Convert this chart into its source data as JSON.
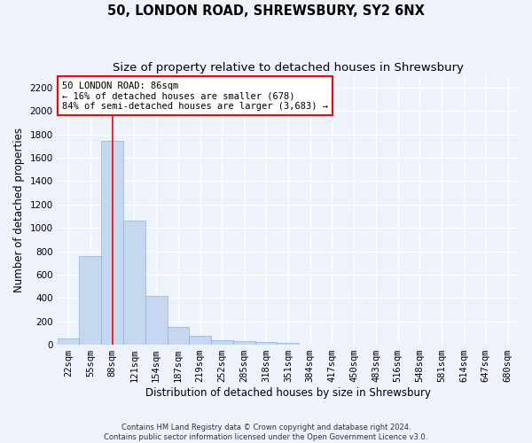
{
  "title_line1": "50, LONDON ROAD, SHREWSBURY, SY2 6NX",
  "title_line2": "Size of property relative to detached houses in Shrewsbury",
  "xlabel": "Distribution of detached houses by size in Shrewsbury",
  "ylabel": "Number of detached properties",
  "bar_color": "#c5d8f0",
  "bar_edge_color": "#8ab4d8",
  "annotation_line_color": "red",
  "categories": [
    "22sqm",
    "55sqm",
    "88sqm",
    "121sqm",
    "154sqm",
    "187sqm",
    "219sqm",
    "252sqm",
    "285sqm",
    "318sqm",
    "351sqm",
    "384sqm",
    "417sqm",
    "450sqm",
    "483sqm",
    "516sqm",
    "548sqm",
    "581sqm",
    "614sqm",
    "647sqm",
    "680sqm"
  ],
  "values": [
    50,
    760,
    1740,
    1065,
    420,
    155,
    75,
    35,
    30,
    20,
    18,
    0,
    0,
    0,
    0,
    0,
    0,
    0,
    0,
    0,
    0
  ],
  "annotation_text_line1": "50 LONDON ROAD: 86sqm",
  "annotation_text_line2": "← 16% of detached houses are smaller (678)",
  "annotation_text_line3": "84% of semi-detached houses are larger (3,683) →",
  "vline_x": 2,
  "ylim": [
    0,
    2300
  ],
  "yticks": [
    0,
    200,
    400,
    600,
    800,
    1000,
    1200,
    1400,
    1600,
    1800,
    2000,
    2200
  ],
  "footnote1": "Contains HM Land Registry data © Crown copyright and database right 2024.",
  "footnote2": "Contains public sector information licensed under the Open Government Licence v3.0.",
  "bg_color": "#edf2fb",
  "grid_color": "#ffffff",
  "title_fontsize": 10.5,
  "subtitle_fontsize": 9.5,
  "axis_label_fontsize": 8.5,
  "tick_fontsize": 7.5,
  "annotation_fontsize": 7.5,
  "footnote_fontsize": 6.0
}
